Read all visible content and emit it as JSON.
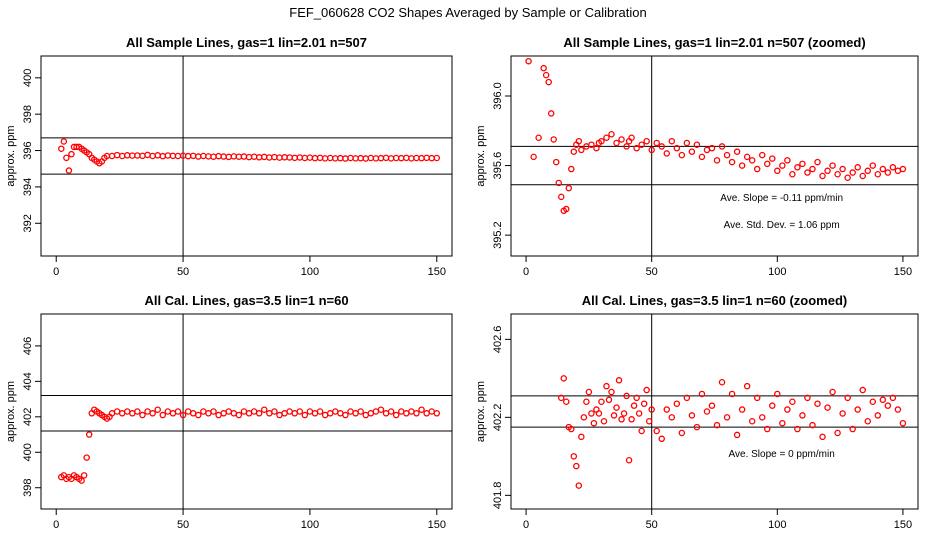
{
  "figure": {
    "title": "FEF_060628  CO2 Shapes Averaged by Sample or Calibration"
  },
  "chart_data": [
    {
      "type": "scatter",
      "title": "All Sample Lines, gas=1 lin=2.01 n=507",
      "xlabel": "",
      "ylabel": "approx. ppm",
      "xlim": [
        -6,
        156
      ],
      "ylim": [
        390.2,
        401.2
      ],
      "xticks": [
        0,
        50,
        100,
        150
      ],
      "yticks": [
        392,
        394,
        396,
        398,
        400
      ],
      "hlines": [
        396.7,
        394.7
      ],
      "vline": 50,
      "color": "#ff0000",
      "x": [
        2,
        3,
        4,
        5,
        6,
        7,
        8,
        9,
        10,
        11,
        12,
        13,
        14,
        15,
        16,
        17,
        18,
        19,
        20,
        22,
        24,
        26,
        28,
        30,
        32,
        34,
        36,
        38,
        40,
        42,
        44,
        46,
        48,
        50,
        52,
        54,
        56,
        58,
        60,
        62,
        64,
        66,
        68,
        70,
        72,
        74,
        76,
        78,
        80,
        82,
        84,
        86,
        88,
        90,
        92,
        94,
        96,
        98,
        100,
        102,
        104,
        106,
        108,
        110,
        112,
        114,
        116,
        118,
        120,
        122,
        124,
        126,
        128,
        130,
        132,
        134,
        136,
        138,
        140,
        142,
        144,
        146,
        148,
        150
      ],
      "y": [
        396.1,
        396.5,
        395.6,
        394.9,
        395.8,
        396.2,
        396.2,
        396.2,
        396.1,
        396.0,
        395.9,
        395.8,
        395.6,
        395.5,
        395.4,
        395.3,
        395.4,
        395.6,
        395.7,
        395.7,
        395.75,
        395.7,
        395.74,
        395.72,
        395.73,
        395.71,
        395.76,
        395.7,
        395.74,
        395.69,
        395.73,
        395.71,
        395.7,
        395.72,
        395.69,
        395.71,
        395.67,
        395.7,
        395.68,
        395.66,
        395.69,
        395.67,
        395.65,
        395.68,
        395.66,
        395.67,
        395.64,
        395.66,
        395.63,
        395.65,
        395.62,
        395.64,
        395.61,
        395.63,
        395.62,
        395.6,
        395.62,
        395.59,
        395.61,
        395.58,
        395.6,
        395.57,
        395.59,
        395.57,
        395.58,
        395.56,
        395.59,
        395.57,
        395.58,
        395.56,
        395.59,
        395.57,
        395.58,
        395.6,
        395.57,
        395.59,
        395.58,
        395.6,
        395.57,
        395.59,
        395.58,
        395.6,
        395.58,
        395.59
      ]
    },
    {
      "type": "scatter",
      "title": "All Sample Lines, gas=1 lin=2.01 n=507 (zoomed)",
      "xlabel": "",
      "ylabel": "approx. ppm",
      "xlim": [
        -6,
        156
      ],
      "ylim": [
        395.08,
        396.23
      ],
      "xticks": [
        0,
        50,
        100,
        150
      ],
      "yticks": [
        395.2,
        395.6,
        396.0
      ],
      "ytick_labels": [
        "395.2",
        "395.6",
        "396.0"
      ],
      "hlines": [
        395.71,
        395.49
      ],
      "vline": 50,
      "color": "#ff0000",
      "annotations": [
        "Ave. Slope =  -0.11  ppm/min",
        "Ave. Std. Dev. =  1.06  ppm"
      ],
      "x": [
        1,
        3,
        5,
        7,
        8,
        9,
        10,
        11,
        12,
        13,
        14,
        15,
        16,
        17,
        18,
        19,
        20,
        21,
        22,
        24,
        26,
        28,
        29,
        30,
        32,
        34,
        36,
        38,
        40,
        41,
        42,
        44,
        46,
        48,
        50,
        52,
        54,
        56,
        58,
        60,
        62,
        64,
        66,
        68,
        70,
        72,
        74,
        76,
        78,
        80,
        82,
        84,
        86,
        88,
        90,
        92,
        94,
        96,
        98,
        100,
        102,
        104,
        106,
        108,
        110,
        112,
        114,
        116,
        118,
        120,
        122,
        124,
        126,
        128,
        130,
        132,
        134,
        136,
        138,
        140,
        142,
        144,
        146,
        148,
        150
      ],
      "y": [
        396.2,
        395.65,
        395.76,
        396.16,
        396.12,
        396.08,
        395.9,
        395.75,
        395.62,
        395.5,
        395.42,
        395.34,
        395.35,
        395.47,
        395.58,
        395.68,
        395.72,
        395.74,
        395.69,
        395.71,
        395.72,
        395.7,
        395.73,
        395.74,
        395.76,
        395.78,
        395.73,
        395.75,
        395.71,
        395.74,
        395.76,
        395.7,
        395.72,
        395.74,
        395.69,
        395.73,
        395.71,
        395.67,
        395.74,
        395.7,
        395.66,
        395.73,
        395.68,
        395.72,
        395.65,
        395.69,
        395.7,
        395.63,
        395.71,
        395.66,
        395.62,
        395.68,
        395.6,
        395.65,
        395.63,
        395.58,
        395.66,
        395.61,
        395.64,
        395.57,
        395.6,
        395.63,
        395.55,
        395.59,
        395.61,
        395.56,
        395.58,
        395.62,
        395.54,
        395.57,
        395.6,
        395.55,
        395.58,
        395.53,
        395.56,
        395.59,
        395.54,
        395.57,
        395.6,
        395.55,
        395.58,
        395.56,
        395.59,
        395.57,
        395.58
      ]
    },
    {
      "type": "scatter",
      "title": "All Cal. Lines, gas=3.5 lin=1 n=60",
      "xlabel": "",
      "ylabel": "approx. ppm",
      "xlim": [
        -6,
        156
      ],
      "ylim": [
        396.8,
        407.8
      ],
      "xticks": [
        0,
        50,
        100,
        150
      ],
      "yticks": [
        398,
        400,
        402,
        404,
        406
      ],
      "hlines": [
        403.2,
        401.2
      ],
      "vline": 50,
      "color": "#ff0000",
      "x": [
        2,
        3,
        4,
        5,
        6,
        7,
        8,
        9,
        10,
        11,
        12,
        13,
        14,
        15,
        16,
        17,
        18,
        19,
        20,
        21,
        22,
        24,
        26,
        28,
        30,
        32,
        34,
        36,
        38,
        40,
        42,
        44,
        46,
        48,
        50,
        52,
        54,
        56,
        58,
        60,
        62,
        64,
        66,
        68,
        70,
        72,
        74,
        76,
        78,
        80,
        82,
        84,
        86,
        88,
        90,
        92,
        94,
        96,
        98,
        100,
        102,
        104,
        106,
        108,
        110,
        112,
        114,
        116,
        118,
        120,
        122,
        124,
        126,
        128,
        130,
        132,
        134,
        136,
        138,
        140,
        142,
        144,
        146,
        148,
        150
      ],
      "y": [
        398.6,
        398.7,
        398.5,
        398.6,
        398.5,
        398.7,
        398.6,
        398.5,
        398.4,
        398.7,
        399.7,
        401.0,
        402.2,
        402.4,
        402.3,
        402.2,
        402.1,
        402.0,
        401.9,
        402.0,
        402.2,
        402.3,
        402.2,
        402.3,
        402.2,
        402.3,
        402.1,
        402.3,
        402.2,
        402.4,
        402.1,
        402.3,
        402.2,
        402.3,
        402.1,
        402.3,
        402.2,
        402.1,
        402.3,
        402.2,
        402.3,
        402.1,
        402.2,
        402.3,
        402.2,
        402.1,
        402.3,
        402.2,
        402.3,
        402.2,
        402.4,
        402.2,
        402.3,
        402.1,
        402.2,
        402.3,
        402.2,
        402.3,
        402.1,
        402.3,
        402.2,
        402.3,
        402.1,
        402.2,
        402.3,
        402.2,
        402.1,
        402.3,
        402.2,
        402.3,
        402.1,
        402.2,
        402.3,
        402.4,
        402.2,
        402.3,
        402.1,
        402.3,
        402.2,
        402.3,
        402.2,
        402.4,
        402.2,
        402.3,
        402.2
      ]
    },
    {
      "type": "scatter",
      "title": "All Cal. Lines, gas=3.5 lin=1 n=60 (zoomed)",
      "xlabel": "",
      "ylabel": "approx. ppm",
      "xlim": [
        -6,
        156
      ],
      "ylim": [
        401.73,
        402.73
      ],
      "xticks": [
        0,
        50,
        100,
        150
      ],
      "yticks": [
        401.8,
        402.2,
        402.6
      ],
      "ytick_labels": [
        "401.8",
        "402.2",
        "402.6"
      ],
      "hlines": [
        402.31,
        402.15
      ],
      "vline": 50,
      "color": "#ff0000",
      "annotations": [
        "Ave. Slope =  0  ppm/min"
      ],
      "x": [
        14,
        15,
        16,
        17,
        18,
        19,
        20,
        21,
        22,
        23,
        24,
        25,
        26,
        27,
        28,
        29,
        30,
        31,
        32,
        33,
        34,
        35,
        36,
        37,
        38,
        39,
        40,
        41,
        42,
        43,
        44,
        45,
        46,
        47,
        48,
        49,
        50,
        52,
        54,
        56,
        58,
        60,
        62,
        64,
        66,
        68,
        70,
        72,
        74,
        76,
        78,
        80,
        82,
        84,
        86,
        88,
        90,
        92,
        94,
        96,
        98,
        100,
        102,
        104,
        106,
        108,
        110,
        112,
        114,
        116,
        118,
        120,
        122,
        124,
        126,
        128,
        130,
        132,
        134,
        136,
        138,
        140,
        142,
        144,
        146,
        148,
        150
      ],
      "y": [
        402.3,
        402.4,
        402.28,
        402.15,
        402.14,
        402.0,
        401.95,
        401.85,
        402.1,
        402.2,
        402.28,
        402.33,
        402.22,
        402.17,
        402.24,
        402.22,
        402.28,
        402.18,
        402.36,
        402.29,
        402.33,
        402.21,
        402.25,
        402.39,
        402.19,
        402.22,
        402.31,
        401.98,
        402.19,
        402.26,
        402.3,
        402.22,
        402.13,
        402.27,
        402.34,
        402.18,
        402.24,
        402.13,
        402.09,
        402.24,
        402.2,
        402.27,
        402.12,
        402.3,
        402.21,
        402.15,
        402.32,
        402.23,
        402.26,
        402.16,
        402.38,
        402.2,
        402.32,
        402.11,
        402.24,
        402.36,
        402.18,
        402.3,
        402.2,
        402.14,
        402.26,
        402.32,
        402.17,
        402.24,
        402.28,
        402.14,
        402.21,
        402.3,
        402.16,
        402.27,
        402.1,
        402.25,
        402.33,
        402.12,
        402.22,
        402.3,
        402.14,
        402.24,
        402.34,
        402.18,
        402.28,
        402.21,
        402.29,
        402.26,
        402.3,
        402.24,
        402.17
      ]
    }
  ]
}
